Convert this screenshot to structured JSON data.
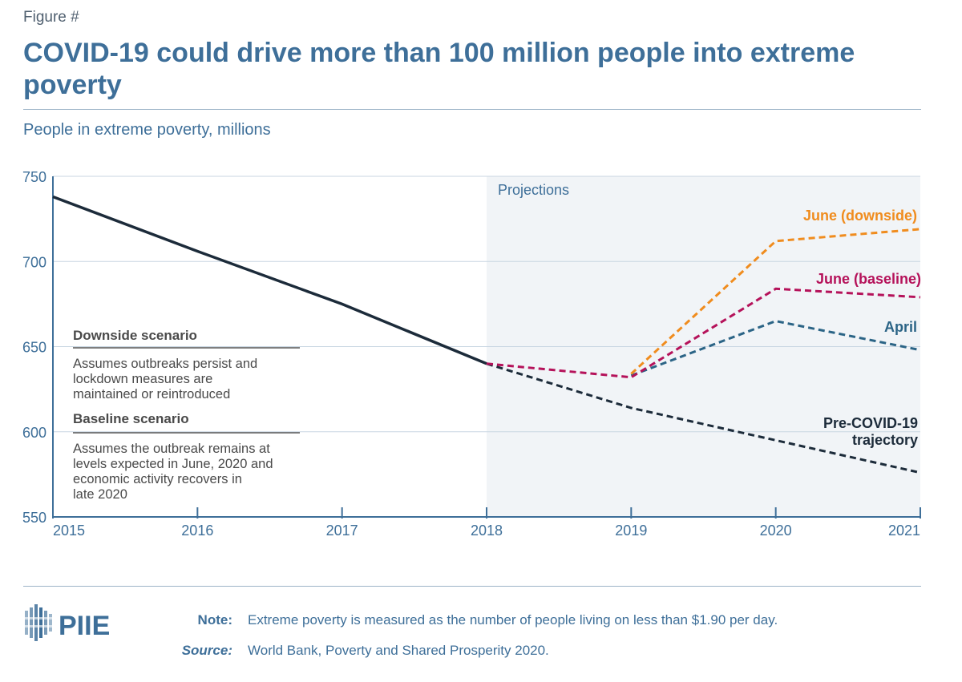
{
  "figure_label": "Figure #",
  "title": "COVID-19 could drive more than 100 million people into extreme poverty",
  "subtitle": "People in extreme poverty, millions",
  "projection_label": "Projections",
  "scenarios": {
    "downside_heading": "Downside scenario",
    "downside_text": [
      "Assumes outbreaks persist and",
      "lockdown measures are",
      "maintained or reintroduced"
    ],
    "baseline_heading": "Baseline scenario",
    "baseline_text": [
      "Assumes the outbreak remains at",
      "levels expected in June, 2020 and",
      "economic activity recovers in",
      "late 2020"
    ]
  },
  "footer": {
    "note_label": "Note:",
    "note_text": "Extreme poverty is measured as the number of people living on less than $1.90 per day.",
    "source_label": "Source:",
    "source_text": "World Bank, Poverty and Shared Prosperity 2020.",
    "logo_text": "PIIE"
  },
  "chart_data": {
    "type": "line",
    "ylim": [
      550,
      750
    ],
    "xlim": [
      2015,
      2021
    ],
    "yticks": [
      550,
      600,
      650,
      700,
      750
    ],
    "xticks": [
      "2015",
      "2016",
      "2017",
      "2018",
      "2019",
      "2020",
      "2021"
    ],
    "grid": true,
    "projection_start": 2018,
    "series": [
      {
        "name": "",
        "color": "#1c2b3a",
        "style": "solid",
        "x": [
          2015,
          2016,
          2017,
          2018
        ],
        "y": [
          738,
          706,
          675,
          640
        ]
      },
      {
        "name": "Pre-COVID-19 trajectory",
        "color": "#1c2b3a",
        "style": "dashed",
        "x": [
          2018,
          2019,
          2020,
          2021
        ],
        "y": [
          640,
          614,
          595,
          576
        ]
      },
      {
        "name": "April",
        "color": "#2b6486",
        "style": "dashed",
        "x": [
          2019,
          2020,
          2021
        ],
        "y": [
          633,
          665,
          648
        ]
      },
      {
        "name": "June (baseline)",
        "color": "#b5125a",
        "style": "dashed",
        "x": [
          2018,
          2019,
          2020,
          2021
        ],
        "y": [
          640,
          632,
          684,
          679
        ]
      },
      {
        "name": "June (downside)",
        "color": "#f08c1e",
        "style": "dashed",
        "x": [
          2019,
          2020,
          2021
        ],
        "y": [
          634,
          712,
          719
        ]
      }
    ]
  }
}
